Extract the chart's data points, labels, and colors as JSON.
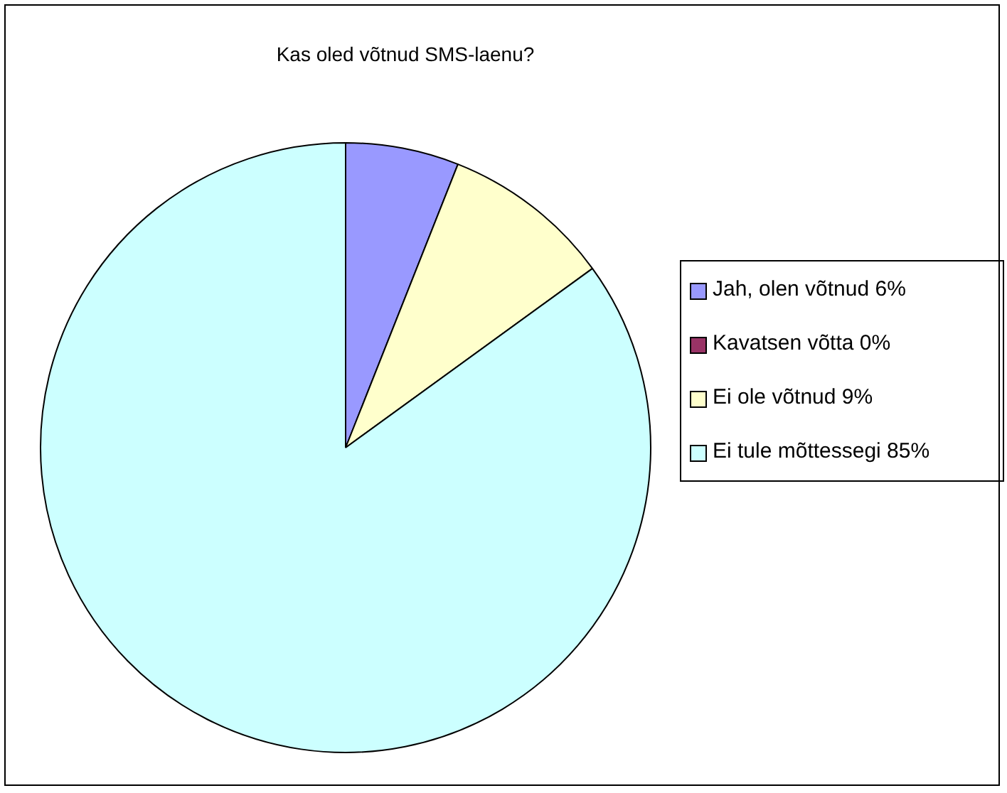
{
  "chart_data": {
    "type": "pie",
    "title": "Kas oled võtnud SMS-laenu?",
    "categories": [
      "Jah, olen võtnud 6%",
      "Kavatsen võtta 0%",
      "Ei ole võtnud 9%",
      "Ei tule mõttessegi 85%"
    ],
    "values": [
      6,
      0,
      9,
      85
    ],
    "colors": [
      "#9999ff",
      "#993366",
      "#ffffcc",
      "#ccffff"
    ],
    "legend": "right"
  }
}
